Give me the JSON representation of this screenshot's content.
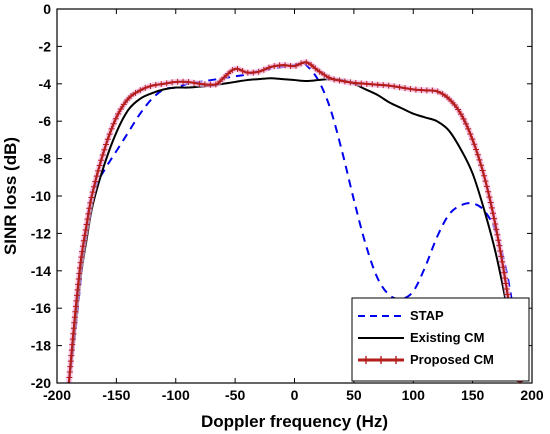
{
  "chart_data": {
    "type": "line",
    "xlabel": "Doppler frequency (Hz)",
    "ylabel": "SINR loss (dB)",
    "xlim": [
      -200,
      200
    ],
    "ylim": [
      -20,
      0
    ],
    "xticks": [
      -200,
      -150,
      -100,
      -50,
      0,
      50,
      100,
      150,
      200
    ],
    "yticks": [
      0,
      -2,
      -4,
      -6,
      -8,
      -10,
      -12,
      -14,
      -16,
      -18,
      -20
    ],
    "grid": false,
    "legend_position": "bottom-right",
    "series": [
      {
        "name": "STAP",
        "color": "#0000ee",
        "style": "dashed",
        "x": [
          -190,
          -185,
          -180,
          -175,
          -170,
          -160,
          -150,
          -140,
          -130,
          -120,
          -110,
          -100,
          -90,
          -80,
          -70,
          -60,
          -50,
          -40,
          -30,
          -20,
          -10,
          0,
          5,
          10,
          20,
          30,
          40,
          50,
          60,
          70,
          80,
          90,
          100,
          110,
          120,
          130,
          140,
          150,
          160,
          170,
          180,
          190
        ],
        "y": [
          -20,
          -17.5,
          -14.5,
          -11.5,
          -9.8,
          -8.6,
          -7.6,
          -6.6,
          -5.6,
          -4.8,
          -4.3,
          -4.2,
          -4.0,
          -3.9,
          -3.8,
          -3.7,
          -3.6,
          -3.5,
          -3.3,
          -3.2,
          -3.1,
          -3.0,
          -2.9,
          -3.0,
          -3.8,
          -5.3,
          -7.6,
          -10.2,
          -12.6,
          -14.4,
          -15.3,
          -15.5,
          -15.1,
          -13.8,
          -12.2,
          -11.0,
          -10.5,
          -10.4,
          -10.8,
          -12.0,
          -14.5,
          -18.5
        ]
      },
      {
        "name": "Existing CM",
        "color": "#000000",
        "style": "solid",
        "x": [
          -190,
          -185,
          -180,
          -175,
          -170,
          -160,
          -150,
          -140,
          -130,
          -120,
          -110,
          -100,
          -90,
          -80,
          -70,
          -60,
          -50,
          -40,
          -30,
          -20,
          -10,
          0,
          10,
          20,
          30,
          40,
          50,
          60,
          70,
          80,
          90,
          100,
          110,
          120,
          130,
          140,
          150,
          160,
          170,
          180,
          185,
          190
        ],
        "y": [
          -20,
          -17.3,
          -14.3,
          -12.3,
          -10.5,
          -8.3,
          -6.6,
          -5.4,
          -4.8,
          -4.5,
          -4.3,
          -4.2,
          -4.2,
          -4.15,
          -4.1,
          -4.0,
          -3.9,
          -3.8,
          -3.75,
          -3.7,
          -3.75,
          -3.8,
          -3.85,
          -3.8,
          -3.75,
          -3.8,
          -4.0,
          -4.3,
          -4.6,
          -5.0,
          -5.3,
          -5.6,
          -5.8,
          -6.0,
          -6.5,
          -7.5,
          -8.8,
          -10.8,
          -13.2,
          -16.3,
          -18.2,
          -20
        ]
      },
      {
        "name": "Proposed CM",
        "color": "#b51d1d",
        "style": "solid-plus",
        "x": [
          -190,
          -185,
          -180,
          -175,
          -170,
          -160,
          -150,
          -140,
          -130,
          -120,
          -110,
          -100,
          -90,
          -80,
          -70,
          -65,
          -60,
          -50,
          -40,
          -30,
          -20,
          -10,
          0,
          10,
          20,
          30,
          40,
          50,
          60,
          70,
          80,
          90,
          100,
          110,
          120,
          130,
          140,
          150,
          160,
          170,
          180,
          185,
          190
        ],
        "y": [
          -20,
          -16.5,
          -13.5,
          -11.5,
          -9.8,
          -7.5,
          -5.8,
          -4.8,
          -4.35,
          -4.1,
          -4.0,
          -3.9,
          -3.9,
          -4.0,
          -4.05,
          -4.0,
          -3.7,
          -3.2,
          -3.4,
          -3.35,
          -3.1,
          -3.0,
          -3.05,
          -2.85,
          -3.3,
          -3.7,
          -3.85,
          -3.95,
          -4.0,
          -4.05,
          -4.1,
          -4.2,
          -4.3,
          -4.35,
          -4.4,
          -4.8,
          -5.6,
          -7.0,
          -9.0,
          -11.8,
          -15.5,
          -18.0,
          -20
        ]
      }
    ]
  }
}
